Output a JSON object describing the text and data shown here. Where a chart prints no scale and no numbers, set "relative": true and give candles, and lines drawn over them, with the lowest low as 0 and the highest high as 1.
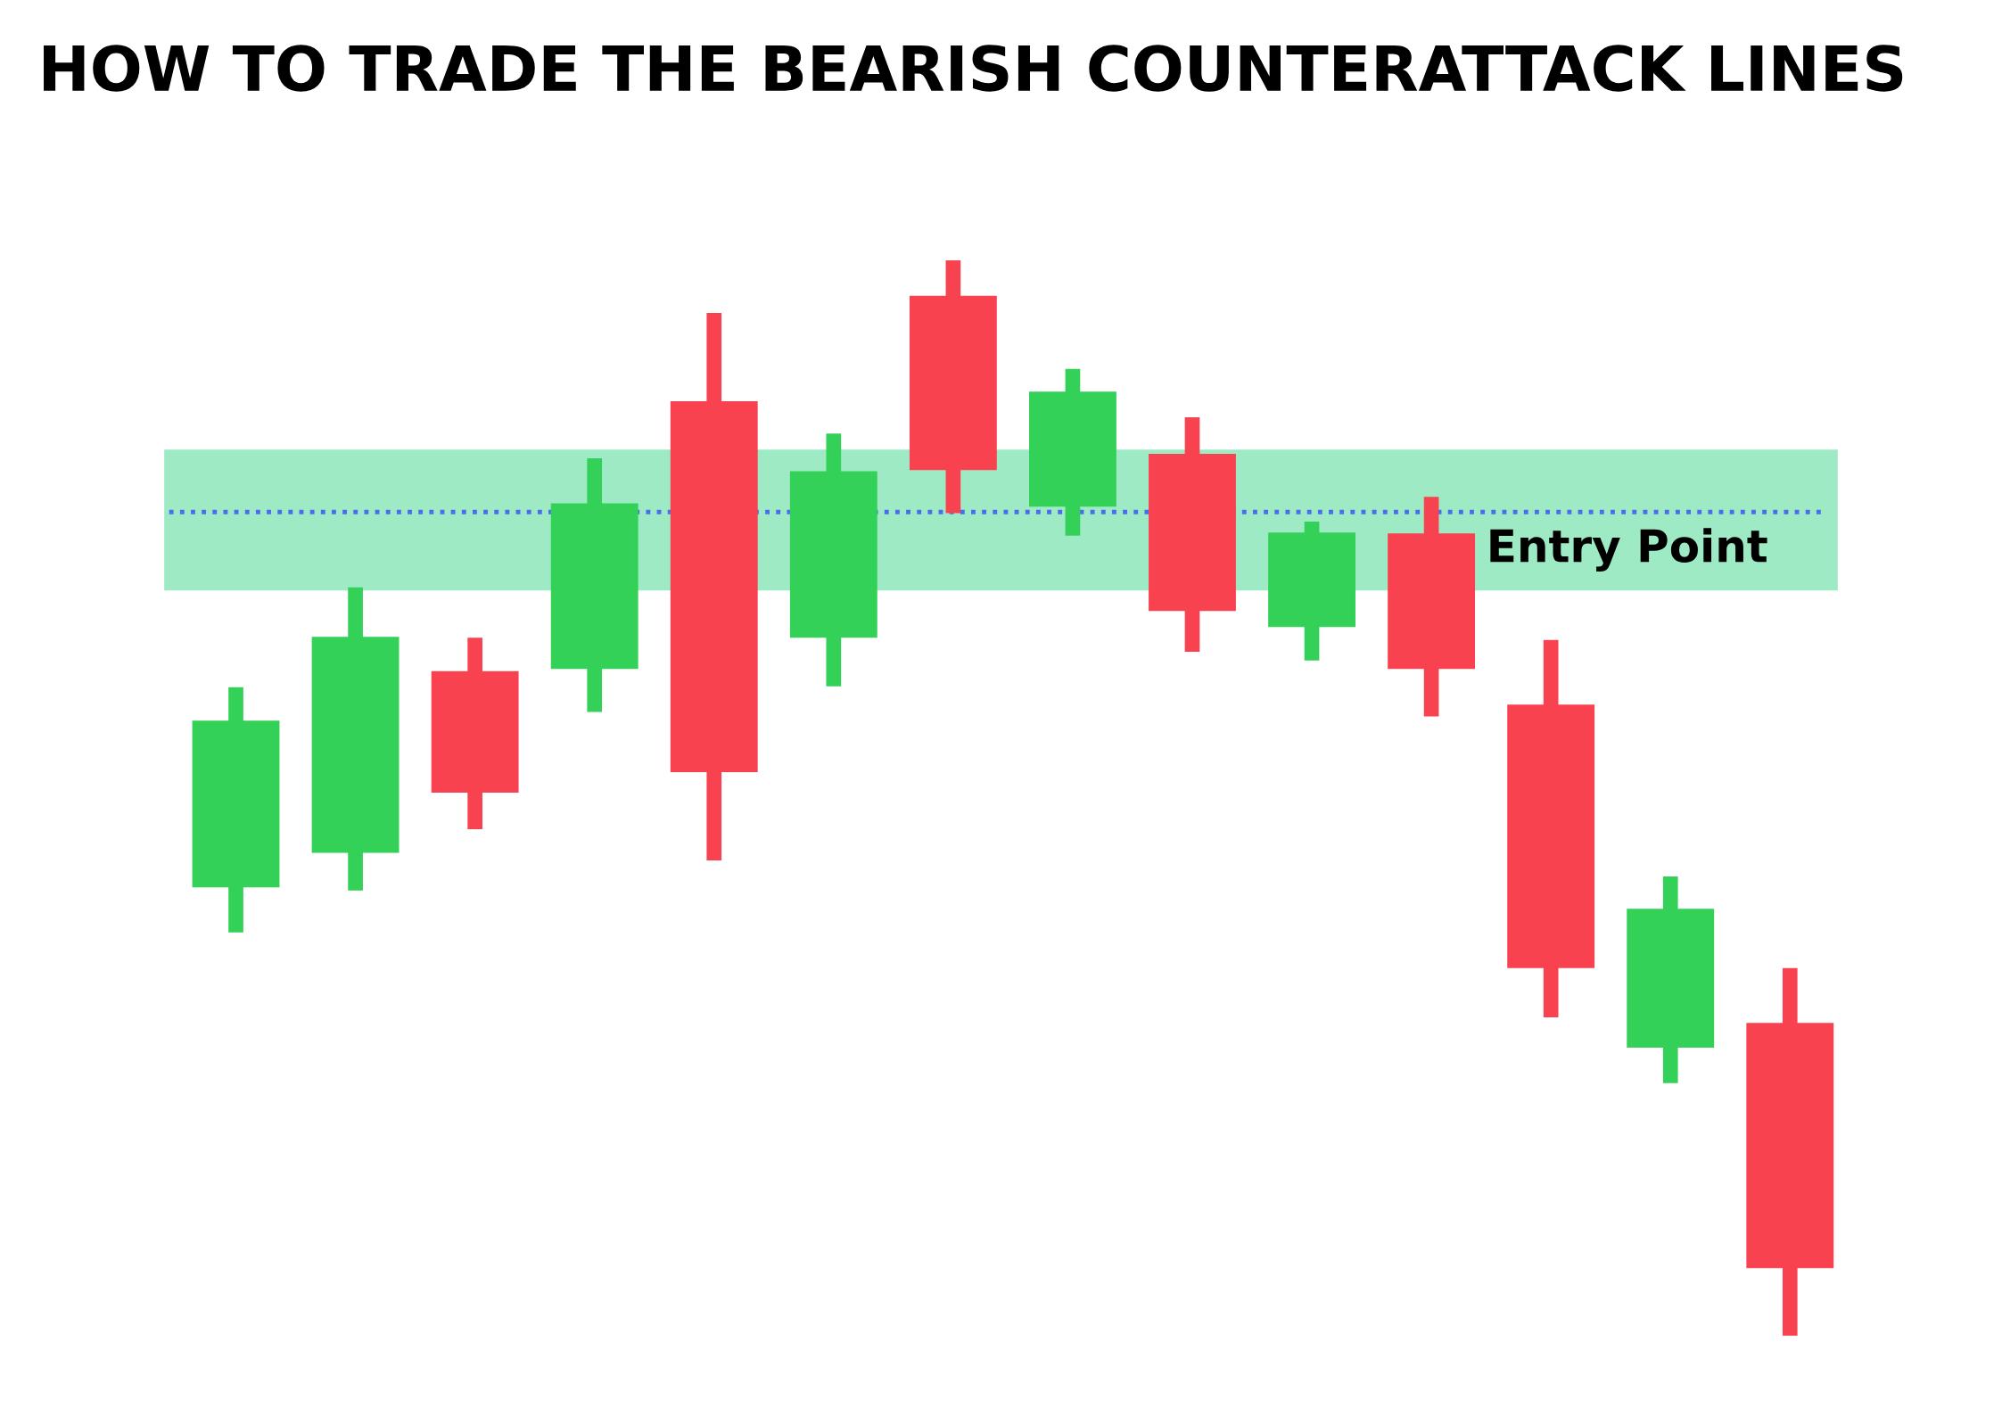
{
  "chart_data": {
    "type": "candlestick",
    "title": "HOW TO TRADE THE BEARISH COUNTERATTACK LINES",
    "relative": true,
    "categories": [
      null,
      null,
      null,
      null,
      null,
      null,
      null,
      null,
      null,
      null,
      null,
      null,
      null,
      null
    ],
    "ohlc": [
      [
        0.417,
        0.603,
        0.375,
        0.572
      ],
      [
        0.449,
        0.696,
        0.414,
        0.65
      ],
      [
        0.618,
        0.649,
        0.471,
        0.505
      ],
      [
        0.62,
        0.816,
        0.58,
        0.774
      ],
      [
        0.869,
        0.951,
        0.442,
        0.524
      ],
      [
        0.649,
        0.839,
        0.604,
        0.804
      ],
      [
        0.967,
        1,
        0.765,
        0.805
      ],
      [
        0.771,
        0.899,
        0.744,
        0.878
      ],
      [
        0.82,
        0.854,
        0.636,
        0.674
      ],
      [
        0.659,
        0.757,
        0.628,
        0.747
      ],
      [
        0.746,
        0.78,
        0.576,
        0.62
      ],
      [
        0.587,
        0.647,
        0.296,
        0.342
      ],
      [
        0.268,
        0.427,
        0.235,
        0.397
      ],
      [
        0.291,
        0.342,
        0,
        0.063
      ]
    ],
    "colors": [
      "#33d158",
      "#33d158",
      "#f9424f",
      "#33d158",
      "#f9424f",
      "#33d158",
      "#f9424f",
      "#33d158",
      "#f9424f",
      "#33d158",
      "#f9424f",
      "#f9424f",
      "#33d158",
      "#f9424f"
    ],
    "bands": [
      {
        "axis": "y",
        "from": 0.693,
        "to": 0.824,
        "color": "#3dd68c"
      }
    ],
    "ref_lines": [
      {
        "axis": "y",
        "value": 0.766,
        "label": "Entry Point",
        "color": "#4a6cf0",
        "line_style": "dotted"
      }
    ]
  }
}
